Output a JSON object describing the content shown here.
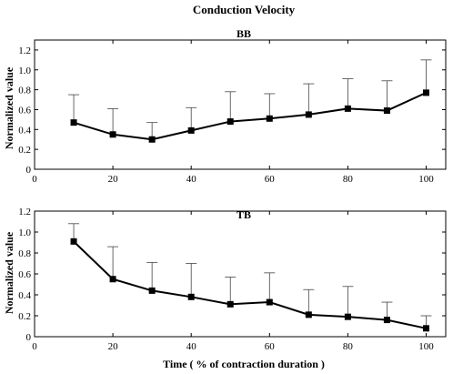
{
  "figure_title": "Conduction Velocity",
  "chart_data": [
    {
      "type": "line",
      "title": "BB",
      "xlabel": "",
      "ylabel": "Normalized value",
      "xlim": [
        0,
        105
      ],
      "ylim": [
        0,
        1.3
      ],
      "xticks": [
        0,
        20,
        40,
        60,
        80,
        100
      ],
      "yticks": [
        0,
        0.2,
        0.4,
        0.6,
        0.8,
        1.0,
        1.2
      ],
      "x": [
        10,
        20,
        30,
        40,
        50,
        60,
        70,
        80,
        90,
        100
      ],
      "series": [
        {
          "values": [
            0.47,
            0.35,
            0.3,
            0.39,
            0.48,
            0.51,
            0.55,
            0.61,
            0.59,
            0.77
          ],
          "error_upper": [
            0.75,
            0.61,
            0.47,
            0.62,
            0.78,
            0.76,
            0.86,
            0.91,
            0.89,
            1.1
          ]
        }
      ],
      "grid": false
    },
    {
      "type": "line",
      "title": "TB",
      "xlabel": "Time ( % of contraction duration )",
      "ylabel": "Normalized value",
      "xlim": [
        0,
        105
      ],
      "ylim": [
        0,
        1.2
      ],
      "xticks": [
        0,
        20,
        40,
        60,
        80,
        100
      ],
      "yticks": [
        0,
        0.2,
        0.4,
        0.6,
        0.8,
        1.0,
        1.2
      ],
      "x": [
        10,
        20,
        30,
        40,
        50,
        60,
        70,
        80,
        90,
        100
      ],
      "series": [
        {
          "values": [
            0.91,
            0.55,
            0.44,
            0.38,
            0.31,
            0.33,
            0.21,
            0.19,
            0.16,
            0.08
          ],
          "error_upper": [
            1.08,
            0.86,
            0.71,
            0.7,
            0.57,
            0.61,
            0.45,
            0.48,
            0.33,
            0.2
          ]
        }
      ],
      "grid": false
    }
  ]
}
